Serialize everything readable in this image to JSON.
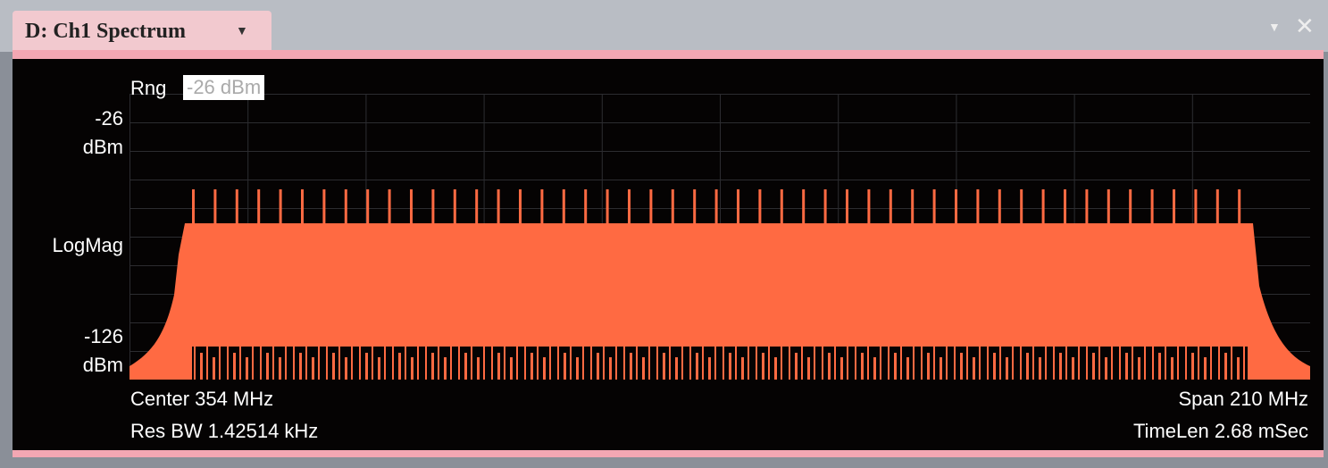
{
  "window": {
    "tab_title": "D: Ch1 Spectrum",
    "range_label": "Rng",
    "range_value": "-26 dBm",
    "y_top": "-26",
    "y_top_unit": "dBm",
    "y_mid": "LogMag",
    "y_bottom": "-126",
    "y_bottom_unit": "dBm",
    "center": "Center 354 MHz",
    "res_bw": "Res BW 1.42514 kHz",
    "span": "Span 210 MHz",
    "time_len": "TimeLen 2.68 mSec"
  }
}
